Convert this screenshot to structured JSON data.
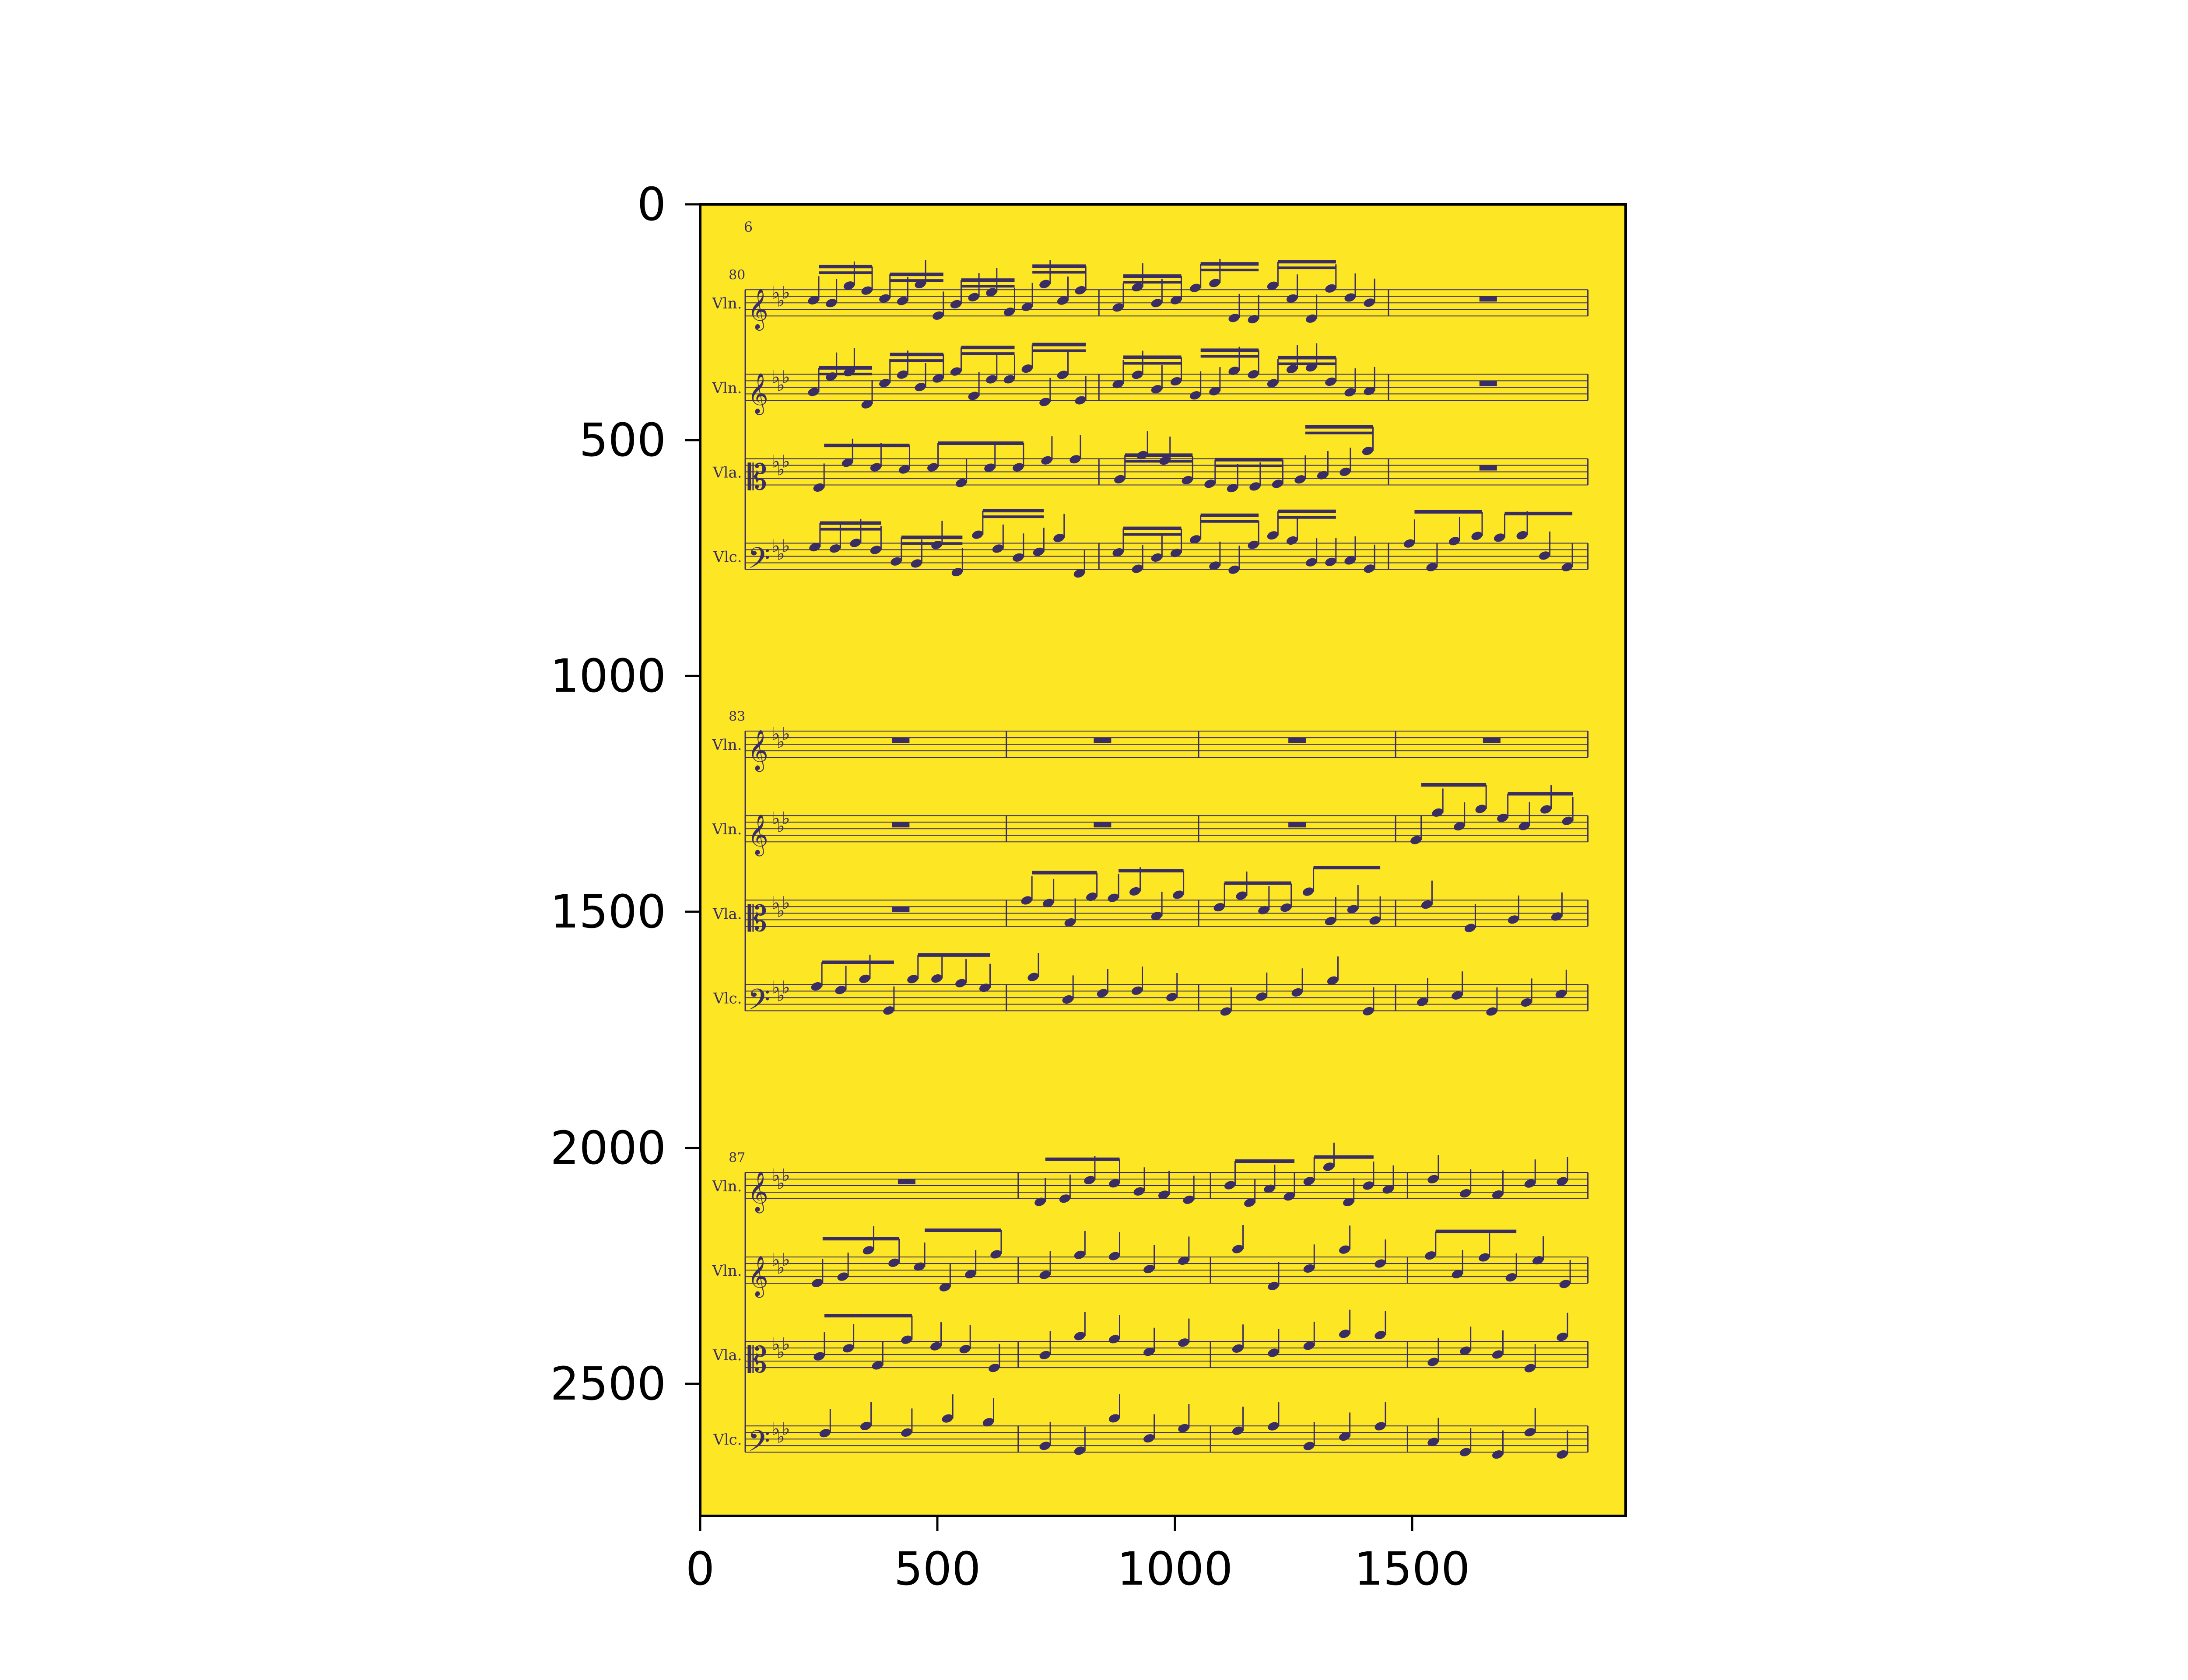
{
  "colors": {
    "page_background": "#fde725",
    "ink": "#3a2d63",
    "axes": "#000000"
  },
  "chart_data": {
    "type": "image",
    "xlim": [
      0,
      1950
    ],
    "ylim": [
      2780,
      0
    ],
    "x_ticks": [
      "0",
      "500",
      "1000",
      "1500"
    ],
    "y_ticks": [
      "0",
      "500",
      "1000",
      "1500",
      "2000",
      "2500"
    ]
  },
  "score": {
    "page_number": "6",
    "systems": [
      {
        "measure_number": "80",
        "parts": [
          "Vln.",
          "Vln.",
          "Vla.",
          "Vlc."
        ]
      },
      {
        "measure_number": "83",
        "parts": [
          "Vln.",
          "Vln.",
          "Vla.",
          "Vlc."
        ]
      },
      {
        "measure_number": "87",
        "parts": [
          "Vln.",
          "Vln.",
          "Vla.",
          "Vlc."
        ]
      }
    ]
  }
}
